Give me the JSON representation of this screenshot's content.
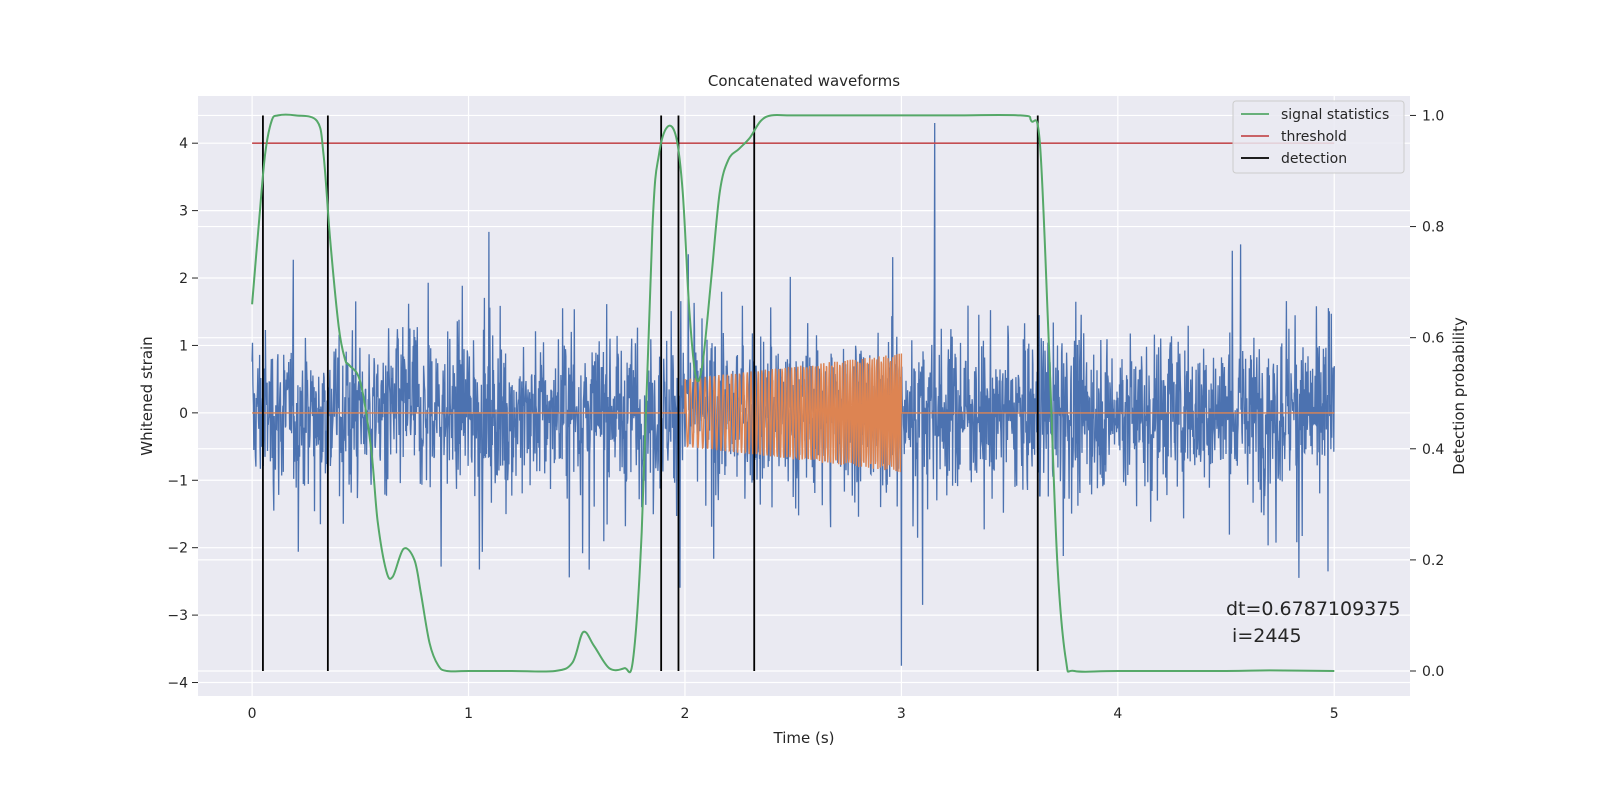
{
  "chart_data": {
    "type": "line",
    "title": "Concatenated waveforms",
    "xlabel": "Time (s)",
    "ylabel_left": "Whitened strain",
    "ylabel_right": "Detection probability",
    "xlim": [
      -0.25,
      5.35
    ],
    "ylim_left": [
      -4.2,
      4.7
    ],
    "ylim_right": [
      -0.045,
      1.035
    ],
    "x_ticks": [
      0,
      1,
      2,
      3,
      4,
      5
    ],
    "y_left_ticks": [
      -4,
      -3,
      -2,
      -1,
      0,
      1,
      2,
      3,
      4
    ],
    "y_right_ticks": [
      0.0,
      0.2,
      0.4,
      0.6,
      0.8,
      1.0
    ],
    "x_tick_labels": [
      "0",
      "1",
      "2",
      "3",
      "4",
      "5"
    ],
    "y_left_tick_labels": [
      "−4",
      "−3",
      "−2",
      "−1",
      "0",
      "1",
      "2",
      "3",
      "4"
    ],
    "y_right_tick_labels": [
      "0.0",
      "0.2",
      "0.4",
      "0.6",
      "0.8",
      "1.0"
    ],
    "grid": true,
    "legend_position": "top-right",
    "background": "#eaeaf2",
    "colors": {
      "strain": "#4c72b0",
      "injection": "#dd8452",
      "signal_statistics": "#55a868",
      "threshold": "#c44e52",
      "detection": "#000000"
    },
    "legend": [
      "signal statistics",
      "threshold",
      "detection"
    ],
    "series": [
      {
        "name": "",
        "axis": "left",
        "kind": "noise",
        "x_range": [
          0,
          5
        ],
        "typical_amplitude": 1.3,
        "max_spike": 4.3,
        "min_spike": -3.75
      },
      {
        "name": "",
        "axis": "left",
        "kind": "chirp",
        "x_range": [
          2.0,
          3.0
        ],
        "amplitude_start": 0.5,
        "amplitude_end": 0.88
      },
      {
        "name": "signal statistics",
        "axis": "right",
        "x": [
          0,
          0.03,
          0.06,
          0.09,
          0.12,
          0.2,
          0.3,
          0.33,
          0.36,
          0.4,
          0.43,
          0.45,
          0.5,
          0.55,
          0.58,
          0.62,
          0.65,
          0.7,
          0.75,
          0.78,
          0.82,
          0.86,
          0.9,
          1.0,
          1.2,
          1.4,
          1.48,
          1.53,
          1.58,
          1.65,
          1.72,
          1.76,
          1.8,
          1.85,
          1.88,
          1.92,
          1.96,
          1.99,
          2.02,
          2.05,
          2.08,
          2.12,
          2.16,
          2.2,
          2.25,
          2.3,
          2.35,
          2.4,
          2.5,
          2.8,
          3.2,
          3.55,
          3.6,
          3.64,
          3.68,
          3.72,
          3.76,
          3.8,
          4.0,
          4.5,
          4.7,
          5.0
        ],
        "values": [
          0.66,
          0.8,
          0.93,
          0.99,
          1.0,
          1.0,
          0.99,
          0.93,
          0.78,
          0.62,
          0.56,
          0.55,
          0.52,
          0.4,
          0.27,
          0.18,
          0.17,
          0.22,
          0.2,
          0.14,
          0.05,
          0.01,
          0.0,
          0.0,
          0.0,
          0.0,
          0.015,
          0.07,
          0.045,
          0.005,
          0.005,
          0.02,
          0.25,
          0.8,
          0.93,
          0.98,
          0.96,
          0.86,
          0.65,
          0.53,
          0.55,
          0.7,
          0.86,
          0.92,
          0.94,
          0.96,
          0.99,
          1.0,
          1.0,
          1.0,
          1.0,
          1.0,
          0.99,
          0.95,
          0.6,
          0.2,
          0.02,
          0.0,
          0.0,
          0.0,
          0.001,
          0.0
        ]
      },
      {
        "name": "threshold",
        "axis": "right",
        "x": [
          0,
          5
        ],
        "values": [
          0.95,
          0.95
        ]
      },
      {
        "name": "detection",
        "axis": "right",
        "kind": "vlines",
        "x": [
          0.05,
          0.35,
          1.89,
          1.97,
          2.32,
          3.63
        ],
        "y_range": [
          0.0,
          1.0
        ]
      }
    ],
    "annotations": [
      "dt=0.6787109375",
      " i=2445"
    ]
  }
}
